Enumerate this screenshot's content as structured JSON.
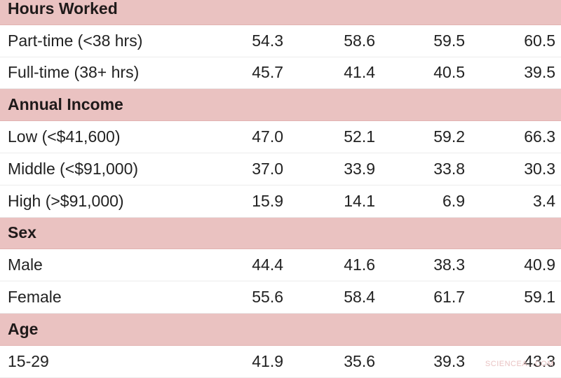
{
  "table": {
    "sections": [
      {
        "title": "Hours Worked",
        "rows": [
          {
            "label": "Part-time (<38 hrs)",
            "values": [
              "54.3",
              "58.6",
              "59.5",
              "60.5"
            ]
          },
          {
            "label": "Full-time (38+ hrs)",
            "values": [
              "45.7",
              "41.4",
              "40.5",
              "39.5"
            ]
          }
        ]
      },
      {
        "title": "Annual Income",
        "rows": [
          {
            "label": "Low (<$41,600)",
            "values": [
              "47.0",
              "52.1",
              "59.2",
              "66.3"
            ]
          },
          {
            "label": "Middle (<$91,000)",
            "values": [
              "37.0",
              "33.9",
              "33.8",
              "30.3"
            ]
          },
          {
            "label": "High (>$91,000)",
            "values": [
              "15.9",
              "14.1",
              "6.9",
              "3.4"
            ]
          }
        ]
      },
      {
        "title": "Sex",
        "rows": [
          {
            "label": "Male",
            "values": [
              "44.4",
              "41.6",
              "38.3",
              "40.9"
            ]
          },
          {
            "label": "Female",
            "values": [
              "55.6",
              "58.4",
              "61.7",
              "59.1"
            ]
          }
        ]
      },
      {
        "title": "Age",
        "rows": [
          {
            "label": "15-29",
            "values": [
              "41.9",
              "35.6",
              "39.3",
              "43.3"
            ]
          }
        ]
      }
    ]
  },
  "colors": {
    "section_background": "#eac2c1",
    "row_background": "#ffffff",
    "text": "#222222"
  },
  "watermark": "SCIENCEA...COM"
}
